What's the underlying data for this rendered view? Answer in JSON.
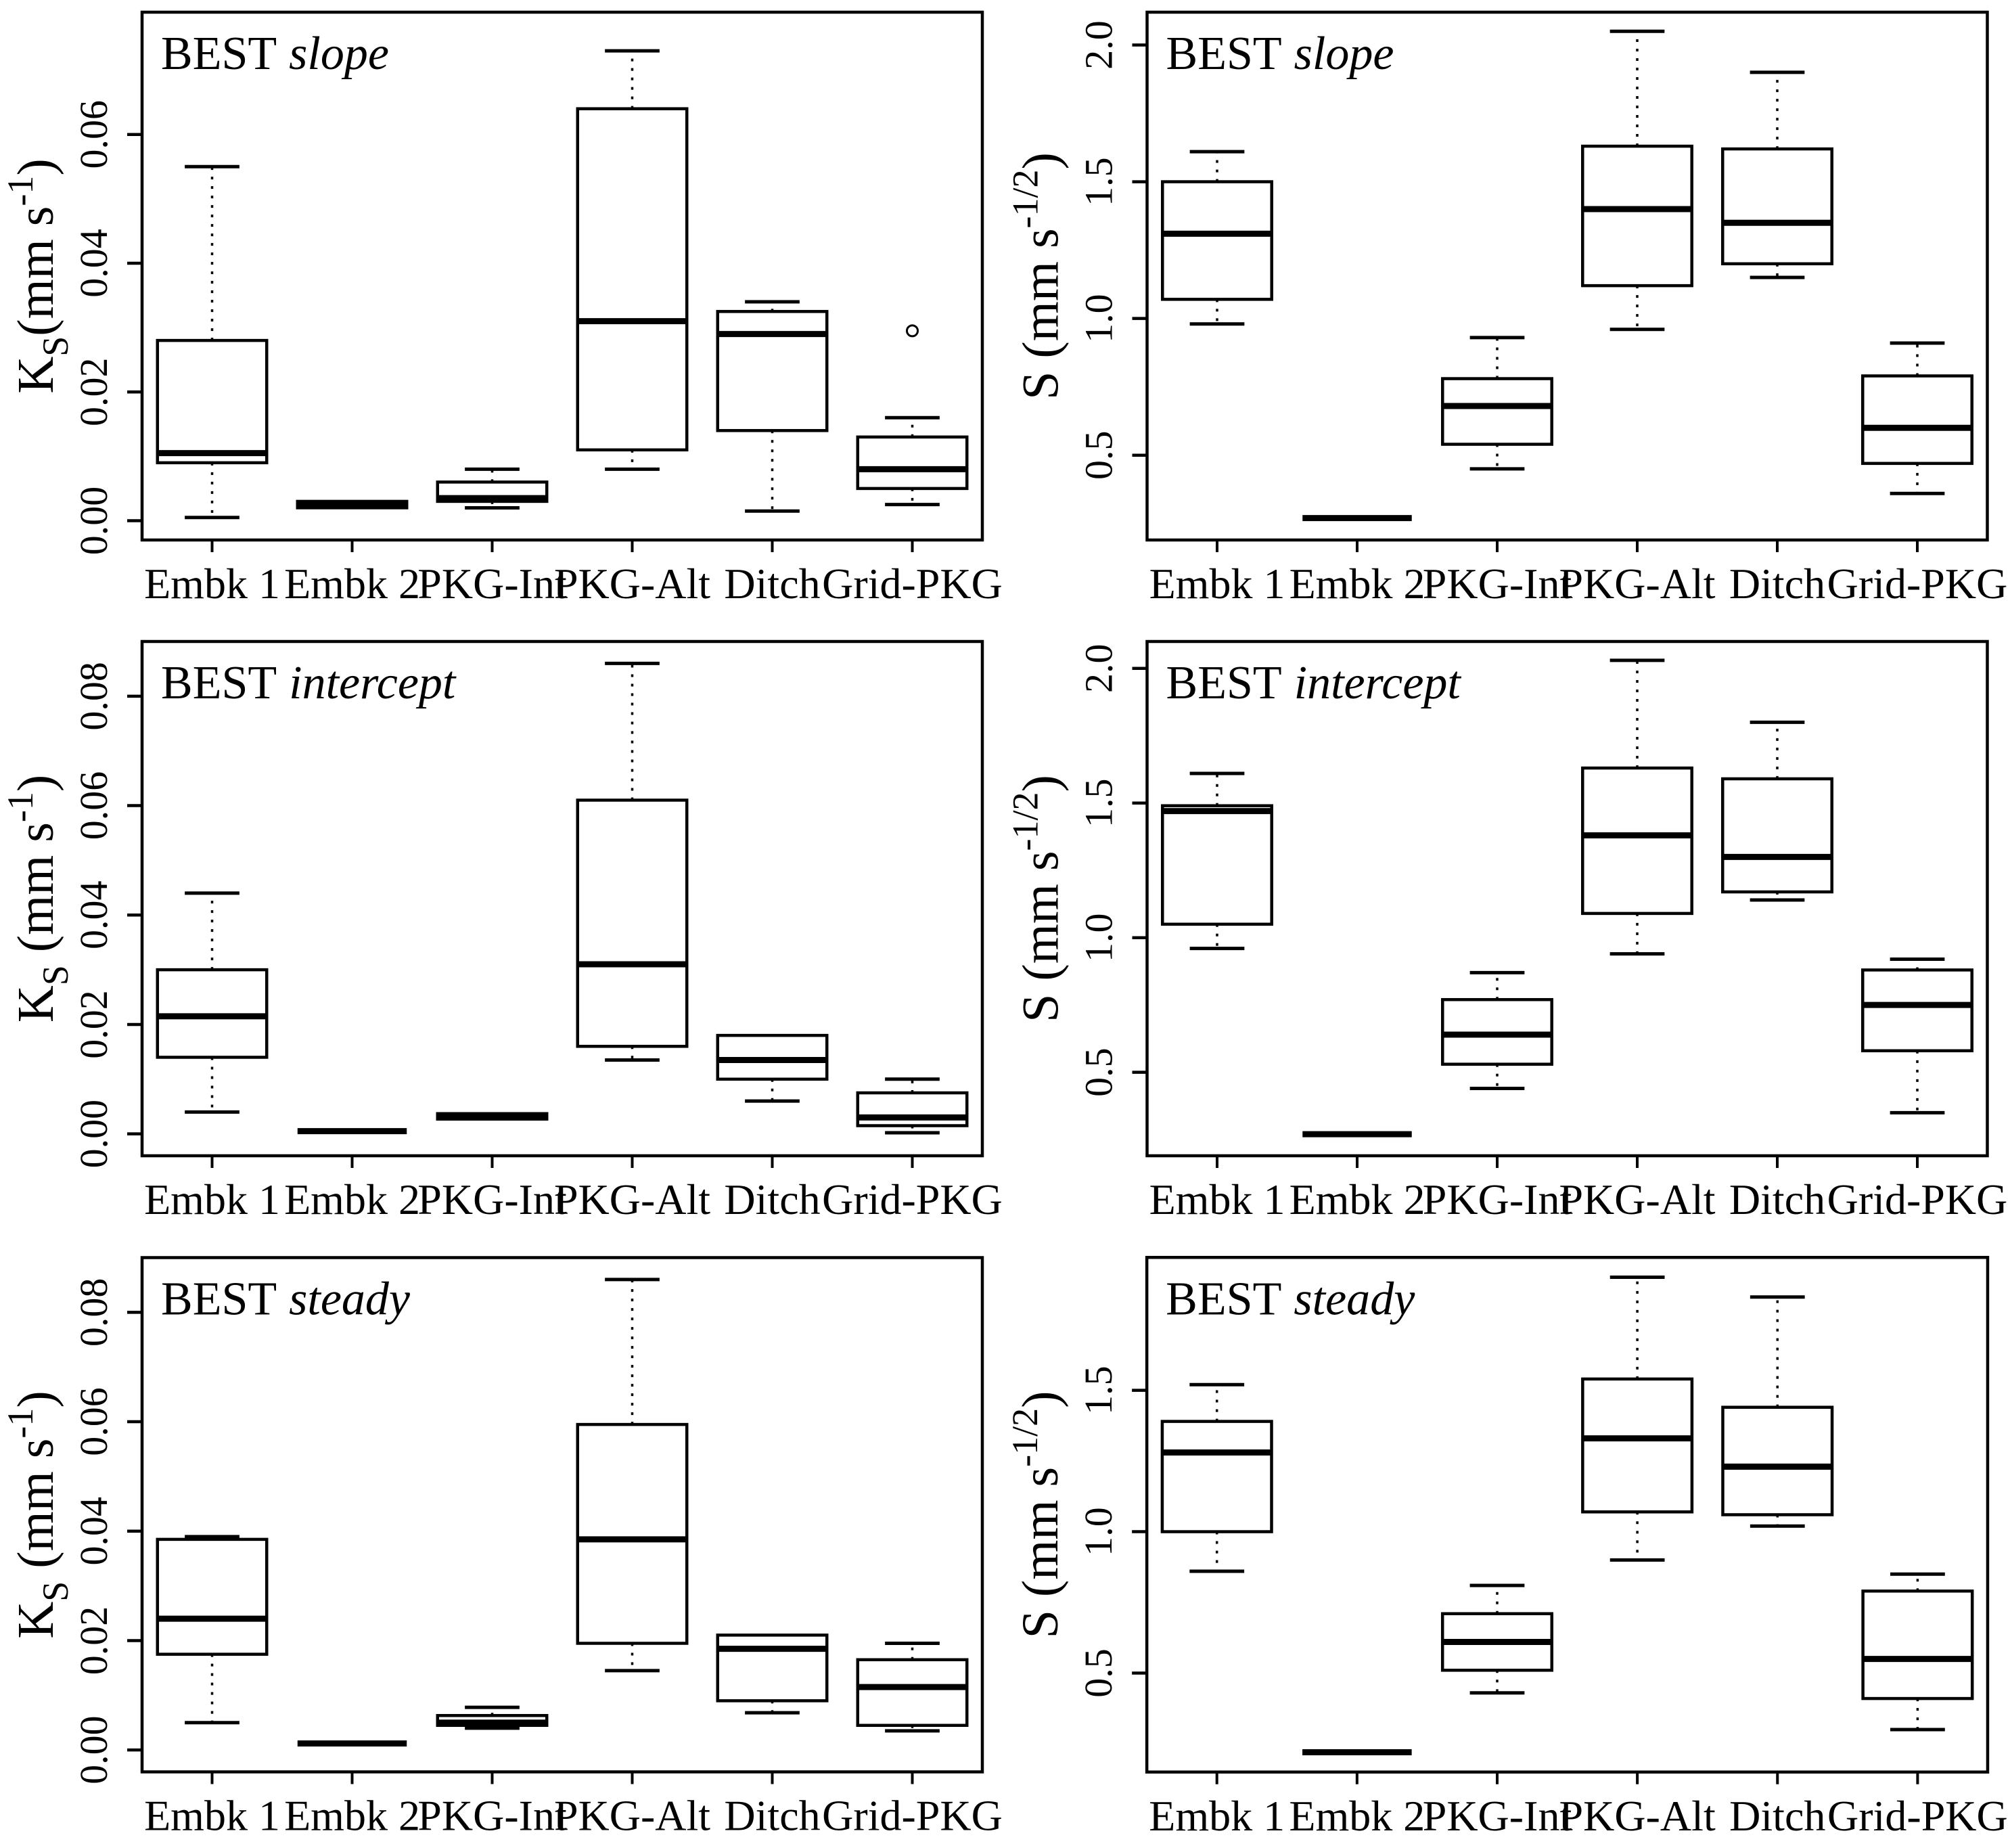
{
  "page": {
    "background": "#ffffff",
    "ink_color": "#000000"
  },
  "categories": [
    "Embk 1",
    "Embk 2",
    "PKG-Int",
    "PKG-Alt",
    "Ditch",
    "Grid-PKG"
  ],
  "chart_data": [
    {
      "id": "ks-best-slope",
      "type": "boxplot",
      "position": "top-left",
      "title": {
        "prefix": "BEST",
        "variant": "slope"
      },
      "ylabel_text": "Ks(mm s-1)",
      "ylabel_segments": [
        {
          "text": "K",
          "script": "base"
        },
        {
          "text": "S",
          "script": "sub"
        },
        {
          "text": "(mm s",
          "script": "base"
        },
        {
          "text": "-1",
          "script": "sup"
        },
        {
          "text": ")",
          "script": "base"
        }
      ],
      "ylim": [
        -0.003,
        0.079
      ],
      "grid": false,
      "frame": true,
      "yticks": [
        {
          "value": 0.0,
          "label": "0.00"
        },
        {
          "value": 0.02,
          "label": "0.02"
        },
        {
          "value": 0.04,
          "label": "0.04"
        },
        {
          "value": 0.06,
          "label": "0.06"
        }
      ],
      "categories": [
        "Embk 1",
        "Embk 2",
        "PKG-Int",
        "PKG-Alt",
        "Ditch",
        "Grid-PKG"
      ],
      "boxes": [
        {
          "category": "Embk 1",
          "whisker_low": 0.0005,
          "q1": 0.009,
          "median": 0.0105,
          "q3": 0.028,
          "whisker_high": 0.055,
          "outliers": []
        },
        {
          "category": "Embk 2",
          "whisker_low": 0.002,
          "q1": 0.002,
          "median": 0.0025,
          "q3": 0.003,
          "whisker_high": 0.003,
          "outliers": []
        },
        {
          "category": "PKG-Int",
          "whisker_low": 0.002,
          "q1": 0.003,
          "median": 0.0035,
          "q3": 0.006,
          "whisker_high": 0.008,
          "outliers": []
        },
        {
          "category": "PKG-Alt",
          "whisker_low": 0.008,
          "q1": 0.011,
          "median": 0.031,
          "q3": 0.064,
          "whisker_high": 0.073,
          "outliers": []
        },
        {
          "category": "Ditch",
          "whisker_low": 0.0015,
          "q1": 0.014,
          "median": 0.029,
          "q3": 0.0325,
          "whisker_high": 0.034,
          "outliers": []
        },
        {
          "category": "Grid-PKG",
          "whisker_low": 0.0025,
          "q1": 0.005,
          "median": 0.008,
          "q3": 0.013,
          "whisker_high": 0.016,
          "outliers": [
            0.0295
          ]
        }
      ]
    },
    {
      "id": "s-best-slope",
      "type": "boxplot",
      "position": "top-right",
      "title": {
        "prefix": "BEST",
        "variant": "slope"
      },
      "ylabel_text": "S (mm s-1/2)",
      "ylabel_segments": [
        {
          "text": "S (mm s",
          "script": "base"
        },
        {
          "text": "-1/2",
          "script": "sup"
        },
        {
          "text": ")",
          "script": "base"
        }
      ],
      "ylim": [
        0.19,
        2.12
      ],
      "grid": false,
      "frame": true,
      "yticks": [
        {
          "value": 0.5,
          "label": "0.5"
        },
        {
          "value": 1.0,
          "label": "1.0"
        },
        {
          "value": 1.5,
          "label": "1.5"
        },
        {
          "value": 2.0,
          "label": "2.0"
        }
      ],
      "categories": [
        "Embk 1",
        "Embk 2",
        "PKG-Int",
        "PKG-Alt",
        "Ditch",
        "Grid-PKG"
      ],
      "boxes": [
        {
          "category": "Embk 1",
          "whisker_low": 0.98,
          "q1": 1.07,
          "median": 1.31,
          "q3": 1.5,
          "whisker_high": 1.61,
          "outliers": []
        },
        {
          "category": "Embk 2",
          "whisker_low": 0.27,
          "q1": 0.27,
          "median": 0.27,
          "q3": 0.27,
          "whisker_high": 0.27,
          "outliers": []
        },
        {
          "category": "PKG-Int",
          "whisker_low": 0.45,
          "q1": 0.54,
          "median": 0.68,
          "q3": 0.78,
          "whisker_high": 0.93,
          "outliers": []
        },
        {
          "category": "PKG-Alt",
          "whisker_low": 0.96,
          "q1": 1.12,
          "median": 1.4,
          "q3": 1.63,
          "whisker_high": 2.05,
          "outliers": []
        },
        {
          "category": "Ditch",
          "whisker_low": 1.15,
          "q1": 1.2,
          "median": 1.35,
          "q3": 1.62,
          "whisker_high": 1.9,
          "outliers": []
        },
        {
          "category": "Grid-PKG",
          "whisker_low": 0.36,
          "q1": 0.47,
          "median": 0.6,
          "q3": 0.79,
          "whisker_high": 0.91,
          "outliers": []
        }
      ]
    },
    {
      "id": "ks-best-intercept",
      "type": "boxplot",
      "position": "middle-left",
      "title": {
        "prefix": "BEST",
        "variant": "intercept"
      },
      "ylabel_text": "Ks (mm s-1)",
      "ylabel_segments": [
        {
          "text": "K",
          "script": "base"
        },
        {
          "text": "S",
          "script": "sub"
        },
        {
          "text": " (mm s",
          "script": "base"
        },
        {
          "text": "-1",
          "script": "sup"
        },
        {
          "text": ")",
          "script": "base"
        }
      ],
      "ylim": [
        -0.004,
        0.09
      ],
      "grid": false,
      "frame": true,
      "yticks": [
        {
          "value": 0.0,
          "label": "0.00"
        },
        {
          "value": 0.02,
          "label": "0.02"
        },
        {
          "value": 0.04,
          "label": "0.04"
        },
        {
          "value": 0.06,
          "label": "0.06"
        },
        {
          "value": 0.08,
          "label": "0.08"
        }
      ],
      "categories": [
        "Embk 1",
        "Embk 2",
        "PKG-Int",
        "PKG-Alt",
        "Ditch",
        "Grid-PKG"
      ],
      "boxes": [
        {
          "category": "Embk 1",
          "whisker_low": 0.004,
          "q1": 0.014,
          "median": 0.0215,
          "q3": 0.03,
          "whisker_high": 0.044,
          "outliers": []
        },
        {
          "category": "Embk 2",
          "whisker_low": 0.0005,
          "q1": 0.0005,
          "median": 0.0005,
          "q3": 0.0005,
          "whisker_high": 0.0005,
          "outliers": []
        },
        {
          "category": "PKG-Int",
          "whisker_low": 0.0027,
          "q1": 0.0027,
          "median": 0.0032,
          "q3": 0.0037,
          "whisker_high": 0.0037,
          "outliers": []
        },
        {
          "category": "PKG-Alt",
          "whisker_low": 0.0135,
          "q1": 0.016,
          "median": 0.031,
          "q3": 0.061,
          "whisker_high": 0.086,
          "outliers": []
        },
        {
          "category": "Ditch",
          "whisker_low": 0.006,
          "q1": 0.01,
          "median": 0.0135,
          "q3": 0.018,
          "whisker_high": 0.018,
          "outliers": []
        },
        {
          "category": "Grid-PKG",
          "whisker_low": 0.0002,
          "q1": 0.0015,
          "median": 0.003,
          "q3": 0.0075,
          "whisker_high": 0.01,
          "outliers": []
        }
      ]
    },
    {
      "id": "s-best-intercept",
      "type": "boxplot",
      "position": "middle-right",
      "title": {
        "prefix": "BEST",
        "variant": "intercept"
      },
      "ylabel_text": "S (mm s-1/2)",
      "ylabel_segments": [
        {
          "text": "S (mm s",
          "script": "base"
        },
        {
          "text": "-1/2",
          "script": "sup"
        },
        {
          "text": ")",
          "script": "base"
        }
      ],
      "ylim": [
        0.19,
        2.1
      ],
      "grid": false,
      "frame": true,
      "yticks": [
        {
          "value": 0.5,
          "label": "0.5"
        },
        {
          "value": 1.0,
          "label": "1.0"
        },
        {
          "value": 1.5,
          "label": "1.5"
        },
        {
          "value": 2.0,
          "label": "2.0"
        }
      ],
      "categories": [
        "Embk 1",
        "Embk 2",
        "PKG-Int",
        "PKG-Alt",
        "Ditch",
        "Grid-PKG"
      ],
      "boxes": [
        {
          "category": "Embk 1",
          "whisker_low": 0.96,
          "q1": 1.05,
          "median": 1.47,
          "q3": 1.49,
          "whisker_high": 1.61,
          "outliers": []
        },
        {
          "category": "Embk 2",
          "whisker_low": 0.27,
          "q1": 0.27,
          "median": 0.27,
          "q3": 0.27,
          "whisker_high": 0.27,
          "outliers": []
        },
        {
          "category": "PKG-Int",
          "whisker_low": 0.44,
          "q1": 0.53,
          "median": 0.64,
          "q3": 0.77,
          "whisker_high": 0.87,
          "outliers": []
        },
        {
          "category": "PKG-Alt",
          "whisker_low": 0.94,
          "q1": 1.09,
          "median": 1.38,
          "q3": 1.63,
          "whisker_high": 2.03,
          "outliers": []
        },
        {
          "category": "Ditch",
          "whisker_low": 1.14,
          "q1": 1.17,
          "median": 1.3,
          "q3": 1.59,
          "whisker_high": 1.8,
          "outliers": []
        },
        {
          "category": "Grid-PKG",
          "whisker_low": 0.35,
          "q1": 0.58,
          "median": 0.75,
          "q3": 0.88,
          "whisker_high": 0.92,
          "outliers": []
        }
      ]
    },
    {
      "id": "ks-best-steady",
      "type": "boxplot",
      "position": "bottom-left",
      "title": {
        "prefix": "BEST",
        "variant": "steady"
      },
      "ylabel_text": "Ks (mm s-1)",
      "ylabel_segments": [
        {
          "text": "K",
          "script": "base"
        },
        {
          "text": "S",
          "script": "sub"
        },
        {
          "text": " (mm s",
          "script": "base"
        },
        {
          "text": "-1",
          "script": "sup"
        },
        {
          "text": ")",
          "script": "base"
        }
      ],
      "ylim": [
        -0.004,
        0.09
      ],
      "grid": false,
      "frame": true,
      "yticks": [
        {
          "value": 0.0,
          "label": "0.00"
        },
        {
          "value": 0.02,
          "label": "0.02"
        },
        {
          "value": 0.04,
          "label": "0.04"
        },
        {
          "value": 0.06,
          "label": "0.06"
        },
        {
          "value": 0.08,
          "label": "0.08"
        }
      ],
      "categories": [
        "Embk 1",
        "Embk 2",
        "PKG-Int",
        "PKG-Alt",
        "Ditch",
        "Grid-PKG"
      ],
      "boxes": [
        {
          "category": "Embk 1",
          "whisker_low": 0.005,
          "q1": 0.0175,
          "median": 0.024,
          "q3": 0.0385,
          "whisker_high": 0.039,
          "outliers": []
        },
        {
          "category": "Embk 2",
          "whisker_low": 0.0012,
          "q1": 0.0012,
          "median": 0.0012,
          "q3": 0.0012,
          "whisker_high": 0.0012,
          "outliers": []
        },
        {
          "category": "PKG-Int",
          "whisker_low": 0.004,
          "q1": 0.0045,
          "median": 0.005,
          "q3": 0.0063,
          "whisker_high": 0.0078,
          "outliers": []
        },
        {
          "category": "PKG-Alt",
          "whisker_low": 0.0145,
          "q1": 0.0195,
          "median": 0.0385,
          "q3": 0.0595,
          "whisker_high": 0.086,
          "outliers": []
        },
        {
          "category": "Ditch",
          "whisker_low": 0.0068,
          "q1": 0.009,
          "median": 0.0185,
          "q3": 0.021,
          "whisker_high": 0.021,
          "outliers": []
        },
        {
          "category": "Grid-PKG",
          "whisker_low": 0.0035,
          "q1": 0.0045,
          "median": 0.0115,
          "q3": 0.0165,
          "whisker_high": 0.0195,
          "outliers": []
        }
      ]
    },
    {
      "id": "s-best-steady",
      "type": "boxplot",
      "position": "bottom-right",
      "title": {
        "prefix": "BEST",
        "variant": "steady"
      },
      "ylabel_text": "S (mm s-1/2)",
      "ylabel_segments": [
        {
          "text": "S (mm s",
          "script": "base"
        },
        {
          "text": "-1/2",
          "script": "sup"
        },
        {
          "text": ")",
          "script": "base"
        }
      ],
      "ylim": [
        0.15,
        1.97
      ],
      "grid": false,
      "frame": true,
      "yticks": [
        {
          "value": 0.5,
          "label": "0.5"
        },
        {
          "value": 1.0,
          "label": "1.0"
        },
        {
          "value": 1.5,
          "label": "1.5"
        }
      ],
      "categories": [
        "Embk 1",
        "Embk 2",
        "PKG-Int",
        "PKG-Alt",
        "Ditch",
        "Grid-PKG"
      ],
      "boxes": [
        {
          "category": "Embk 1",
          "whisker_low": 0.86,
          "q1": 1.0,
          "median": 1.28,
          "q3": 1.39,
          "whisker_high": 1.52,
          "outliers": []
        },
        {
          "category": "Embk 2",
          "whisker_low": 0.22,
          "q1": 0.22,
          "median": 0.22,
          "q3": 0.22,
          "whisker_high": 0.22,
          "outliers": []
        },
        {
          "category": "PKG-Int",
          "whisker_low": 0.43,
          "q1": 0.51,
          "median": 0.61,
          "q3": 0.71,
          "whisker_high": 0.81,
          "outliers": []
        },
        {
          "category": "PKG-Alt",
          "whisker_low": 0.9,
          "q1": 1.07,
          "median": 1.33,
          "q3": 1.54,
          "whisker_high": 1.9,
          "outliers": []
        },
        {
          "category": "Ditch",
          "whisker_low": 1.02,
          "q1": 1.06,
          "median": 1.23,
          "q3": 1.44,
          "whisker_high": 1.83,
          "outliers": []
        },
        {
          "category": "Grid-PKG",
          "whisker_low": 0.3,
          "q1": 0.41,
          "median": 0.55,
          "q3": 0.79,
          "whisker_high": 0.85,
          "outliers": []
        }
      ]
    }
  ]
}
